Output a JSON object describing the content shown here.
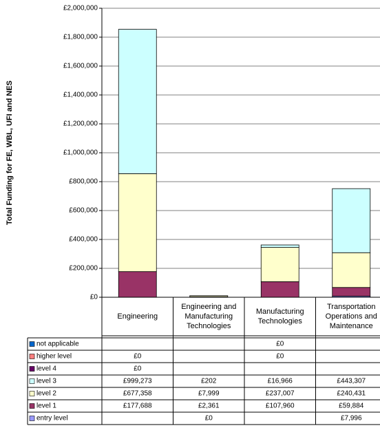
{
  "chart_data": {
    "type": "stacked_bar",
    "y_label": "Total Funding for FE, WBL, UFI and NES",
    "categories": [
      "Engineering",
      "Engineering and Manufacturing Technologies",
      "Manufacturing Technologies",
      "Transportation Operations and Maintenance"
    ],
    "series": [
      {
        "name": "not applicable",
        "color": "#0066cc",
        "values": [
          null,
          null,
          0,
          null
        ],
        "value_labels": [
          null,
          null,
          "£0",
          null
        ]
      },
      {
        "name": "higher level",
        "color": "#ff8080",
        "values": [
          0,
          null,
          0,
          null
        ],
        "value_labels": [
          "£0",
          null,
          "£0",
          null
        ]
      },
      {
        "name": "level 4",
        "color": "#660066",
        "values": [
          0,
          null,
          null,
          null
        ],
        "value_labels": [
          "£0",
          null,
          null,
          null
        ]
      },
      {
        "name": "level 3",
        "color": "#ccffff",
        "values": [
          999273,
          202,
          16966,
          443307
        ],
        "value_labels": [
          "£999,273",
          "£202",
          "£16,966",
          "£443,307"
        ]
      },
      {
        "name": "level 2",
        "color": "#ffffcc",
        "values": [
          677358,
          7999,
          237007,
          240431
        ],
        "value_labels": [
          "£677,358",
          "£7,999",
          "£237,007",
          "£240,431"
        ]
      },
      {
        "name": "level 1",
        "color": "#993366",
        "values": [
          177688,
          2361,
          107960,
          59884
        ],
        "value_labels": [
          "£177,688",
          "£2,361",
          "£107,960",
          "£59,884"
        ]
      },
      {
        "name": "entry level",
        "color": "#9999ff",
        "values": [
          null,
          0,
          null,
          7996
        ],
        "value_labels": [
          null,
          "£0",
          null,
          "£7,996"
        ]
      }
    ],
    "ylim": [
      0,
      2000000
    ],
    "yticks": [
      {
        "value": 0,
        "label": "£0"
      },
      {
        "value": 200000,
        "label": "£200,000"
      },
      {
        "value": 400000,
        "label": "£400,000"
      },
      {
        "value": 600000,
        "label": "£600,000"
      },
      {
        "value": 800000,
        "label": "£800,000"
      },
      {
        "value": 1000000,
        "label": "£1,000,000"
      },
      {
        "value": 1200000,
        "label": "£1,200,000"
      },
      {
        "value": 1400000,
        "label": "£1,400,000"
      },
      {
        "value": 1600000,
        "label": "£1,600,000"
      },
      {
        "value": 1800000,
        "label": "£1,800,000"
      },
      {
        "value": 2000000,
        "label": "£2,000,000"
      }
    ],
    "grid": true
  }
}
